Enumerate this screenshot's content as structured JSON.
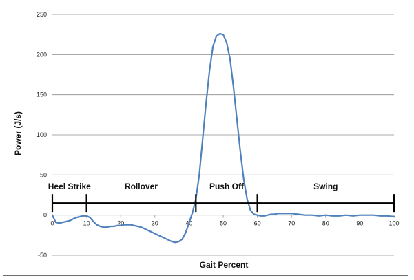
{
  "chart_data": {
    "type": "line",
    "title": "",
    "xlabel": "Gait Percent",
    "ylabel": "Power (J/s)",
    "xlim": [
      0,
      100
    ],
    "ylim": [
      -50,
      250
    ],
    "xticks": [
      0,
      10,
      20,
      30,
      40,
      50,
      60,
      70,
      80,
      90,
      100
    ],
    "yticks": [
      -50,
      0,
      50,
      100,
      150,
      200,
      250
    ],
    "grid": "horizontal",
    "series": [
      {
        "color": "#4f81bd",
        "x": [
          0,
          1,
          2,
          3,
          4,
          5,
          6,
          7,
          8,
          9,
          10,
          11,
          12,
          13,
          14,
          15,
          16,
          17,
          18,
          19,
          20,
          21,
          22,
          23,
          24,
          25,
          26,
          27,
          28,
          29,
          30,
          31,
          32,
          33,
          34,
          35,
          36,
          37,
          38,
          39,
          40,
          41,
          42,
          43,
          44,
          45,
          46,
          47,
          48,
          49,
          50,
          51,
          52,
          53,
          54,
          55,
          56,
          57,
          58,
          59,
          60,
          61,
          62,
          63,
          64,
          65,
          66,
          67,
          68,
          69,
          70,
          72,
          74,
          76,
          78,
          80,
          82,
          84,
          86,
          88,
          90,
          92,
          94,
          96,
          98,
          100
        ],
        "values": [
          0,
          -9,
          -10,
          -9,
          -8,
          -7,
          -5,
          -3,
          -2,
          -1,
          -1,
          -3,
          -8,
          -12,
          -14,
          -15,
          -15,
          -14,
          -14,
          -13,
          -13,
          -12,
          -12,
          -12,
          -13,
          -14,
          -15,
          -17,
          -19,
          -21,
          -23,
          -25,
          -27,
          -29,
          -31,
          -33,
          -34,
          -33,
          -30,
          -22,
          -10,
          3,
          20,
          50,
          95,
          140,
          180,
          210,
          223,
          226,
          225,
          215,
          195,
          160,
          120,
          80,
          45,
          20,
          6,
          1,
          0,
          -1,
          -1,
          0,
          1,
          1,
          2,
          2,
          2,
          2,
          2,
          1,
          0,
          0,
          -1,
          0,
          -1,
          -1,
          0,
          -1,
          0,
          0,
          0,
          -1,
          -1,
          -2
        ]
      }
    ],
    "annotations": {
      "phase_boundaries": [
        0,
        10,
        42,
        60,
        100
      ],
      "phase_line_y": 15,
      "phases": [
        {
          "label": "Heel Strike",
          "x": 5
        },
        {
          "label": "Rollover",
          "x": 26
        },
        {
          "label": "Push Off",
          "x": 51
        },
        {
          "label": "Swing",
          "x": 80
        }
      ]
    }
  }
}
